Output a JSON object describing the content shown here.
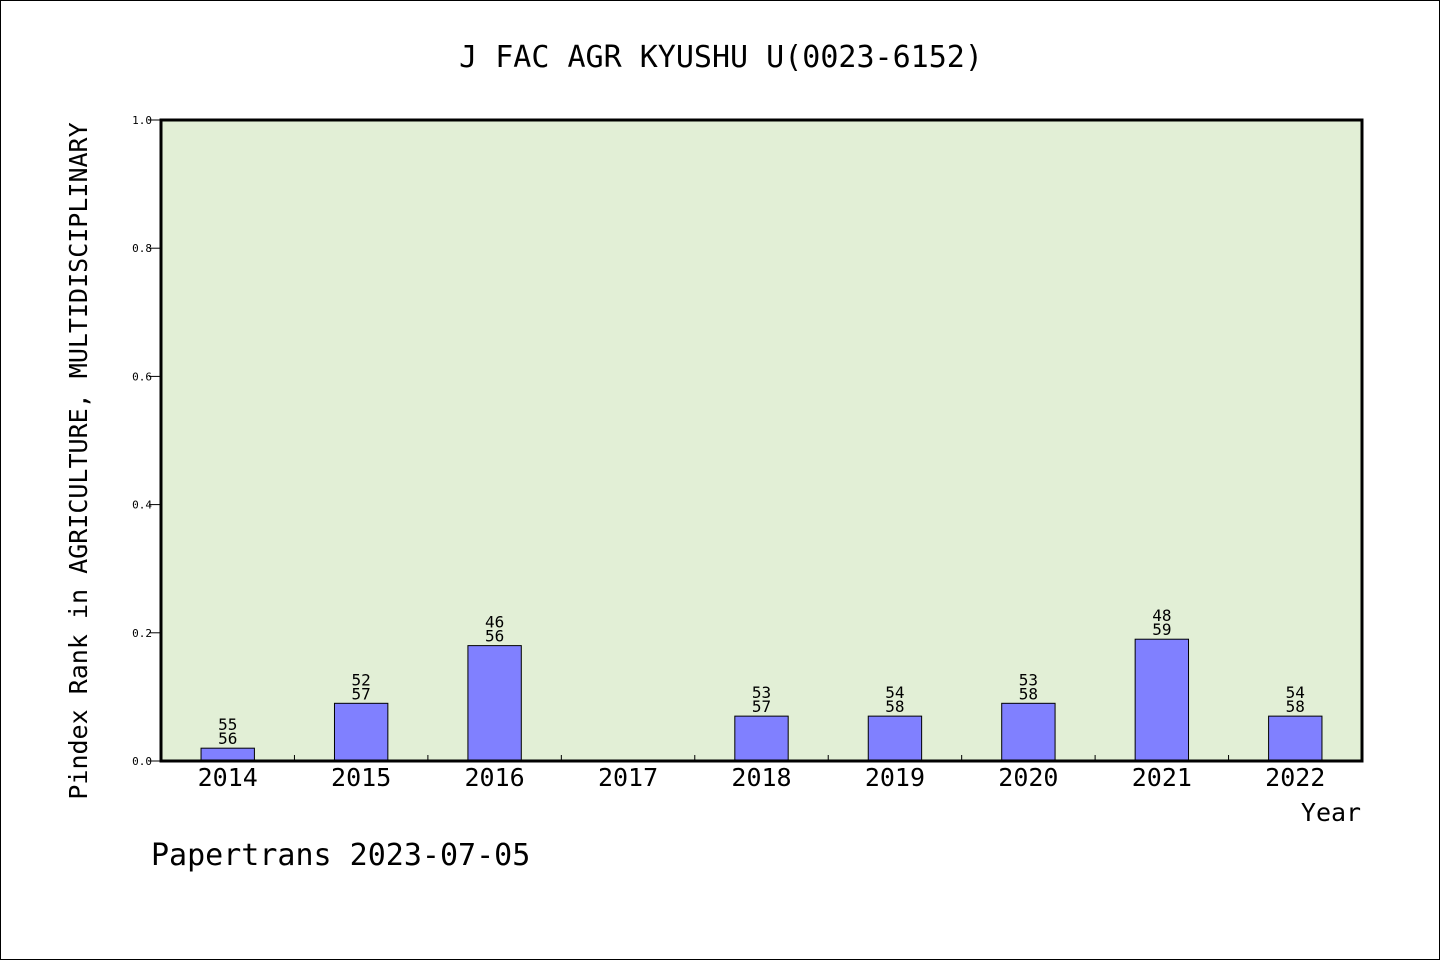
{
  "chart_data": {
    "type": "bar",
    "title": "J FAC AGR KYUSHU U(0023-6152)",
    "xlabel": "Year",
    "ylabel": "Pindex Rank in AGRICULTURE, MULTIDISCIPLINARY",
    "ylim": [
      0,
      1.0
    ],
    "yticks": [
      "0.0",
      "0.2",
      "0.4",
      "0.6",
      "0.8",
      "1.0"
    ],
    "categories": [
      "2014",
      "2015",
      "2016",
      "2017",
      "2018",
      "2019",
      "2020",
      "2021",
      "2022"
    ],
    "values": [
      0.02,
      0.09,
      0.18,
      null,
      0.07,
      0.07,
      0.09,
      0.19,
      0.07
    ],
    "bar_labels": [
      [
        "55",
        "56"
      ],
      [
        "52",
        "57"
      ],
      [
        "46",
        "56"
      ],
      null,
      [
        "53",
        "57"
      ],
      [
        "54",
        "58"
      ],
      [
        "53",
        "58"
      ],
      [
        "48",
        "59"
      ],
      [
        "54",
        "58"
      ]
    ],
    "grid": false,
    "colors": {
      "plot_background": "#e2efd6",
      "bar_fill": "#8080ff",
      "bar_stroke": "#000000"
    }
  },
  "footer": "Papertrans 2023-07-05"
}
